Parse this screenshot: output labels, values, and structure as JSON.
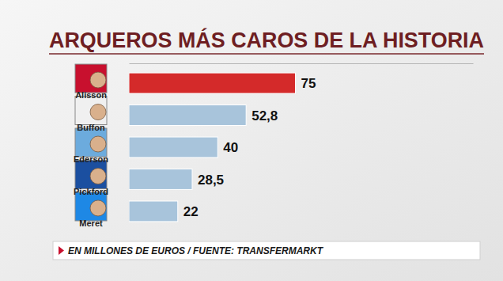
{
  "chart_data": {
    "type": "bar",
    "orientation": "horizontal",
    "title": "ARQUEROS MÁS CAROS DE LA HISTORIA",
    "categories": [
      "Alisson",
      "Buffon",
      "Ederson",
      "Pickford",
      "Meret"
    ],
    "values": [
      75,
      52.8,
      40,
      28.5,
      22
    ],
    "value_labels": [
      "75",
      "52,8",
      "40",
      "28,5",
      "22"
    ],
    "colors": [
      "#d42a2a",
      "#a8c4db",
      "#a8c4db",
      "#a8c4db",
      "#a8c4db"
    ],
    "xlim": [
      0,
      155
    ],
    "tick_labels": false,
    "grid": false,
    "data_labels": true,
    "annotations": [
      "EN MILLONES DE EUROS / FUENTE: TRANSFERMARKT"
    ]
  }
}
